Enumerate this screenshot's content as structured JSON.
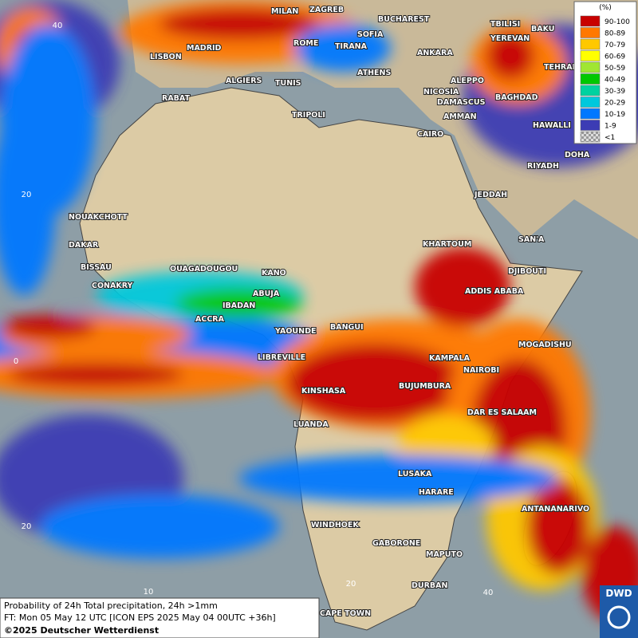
{
  "legend": {
    "unit": "(%)",
    "items": [
      {
        "label": "90-100",
        "color": "#c80000"
      },
      {
        "label": "80-89",
        "color": "#ff7800"
      },
      {
        "label": "70-79",
        "color": "#ffc800"
      },
      {
        "label": "60-69",
        "color": "#ffff00"
      },
      {
        "label": "50-59",
        "color": "#a0e632"
      },
      {
        "label": "40-49",
        "color": "#00c800"
      },
      {
        "label": "30-39",
        "color": "#00d2a0"
      },
      {
        "label": "20-29",
        "color": "#00c8dc"
      },
      {
        "label": "10-19",
        "color": "#0078ff"
      },
      {
        "label": "1-9",
        "color": "#3c3cb4"
      },
      {
        "label": "<1",
        "color": "#b4b4b4"
      }
    ]
  },
  "cities": [
    "MILAN",
    "ZAGREB",
    "BUCHAREST",
    "TBILISI",
    "BAKU",
    "YEREVAN",
    "MADRID",
    "ROME",
    "SOFIA",
    "TIRANA",
    "ANKARA",
    "TEHRAN",
    "LISBON",
    "ATHENS",
    "ALGIERS",
    "TUNIS",
    "ALEPPO",
    "NICOSIA",
    "BAGHDAD",
    "RABAT",
    "TRIPOLI",
    "DAMASCUS",
    "AMMAN",
    "HAWALLI",
    "CAIRO",
    "DOHA",
    "RIYADH",
    "JEDDAH",
    "NOUAKCHOTT",
    "SAN'A",
    "DAKAR",
    "KHARTOUM",
    "BISSAU",
    "DJIBOUTI",
    "OUAGADOUGOU",
    "KANO",
    "CONAKRY",
    "ABUJA",
    "ADDIS ABABA",
    "IBADAN",
    "ACCRA",
    "YAOUNDE",
    "BANGUI",
    "MOGADISHU",
    "KAMPALA",
    "LIBREVILLE",
    "NAIROBI",
    "BUJUMBURA",
    "KINSHASA",
    "DAR ES SALAAM",
    "LUANDA",
    "LUSAKA",
    "HARARE",
    "ANTANANARIVO",
    "WINDHOEK",
    "GABORONE",
    "MAPUTO",
    "DURBAN",
    "CAPE TOWN"
  ],
  "grid_labels": [
    "40",
    "20",
    "0",
    "20",
    "10",
    "20",
    "40"
  ],
  "info": {
    "line1": "Probability of 24h Total precipitation, 24h >1mm",
    "line2": "FT: Mon 05 May 12 UTC [ICON EPS 2025 May 04 00UTC +36h]",
    "line3": "©2025 Deutscher Wetterdienst"
  },
  "logo": "DWD"
}
